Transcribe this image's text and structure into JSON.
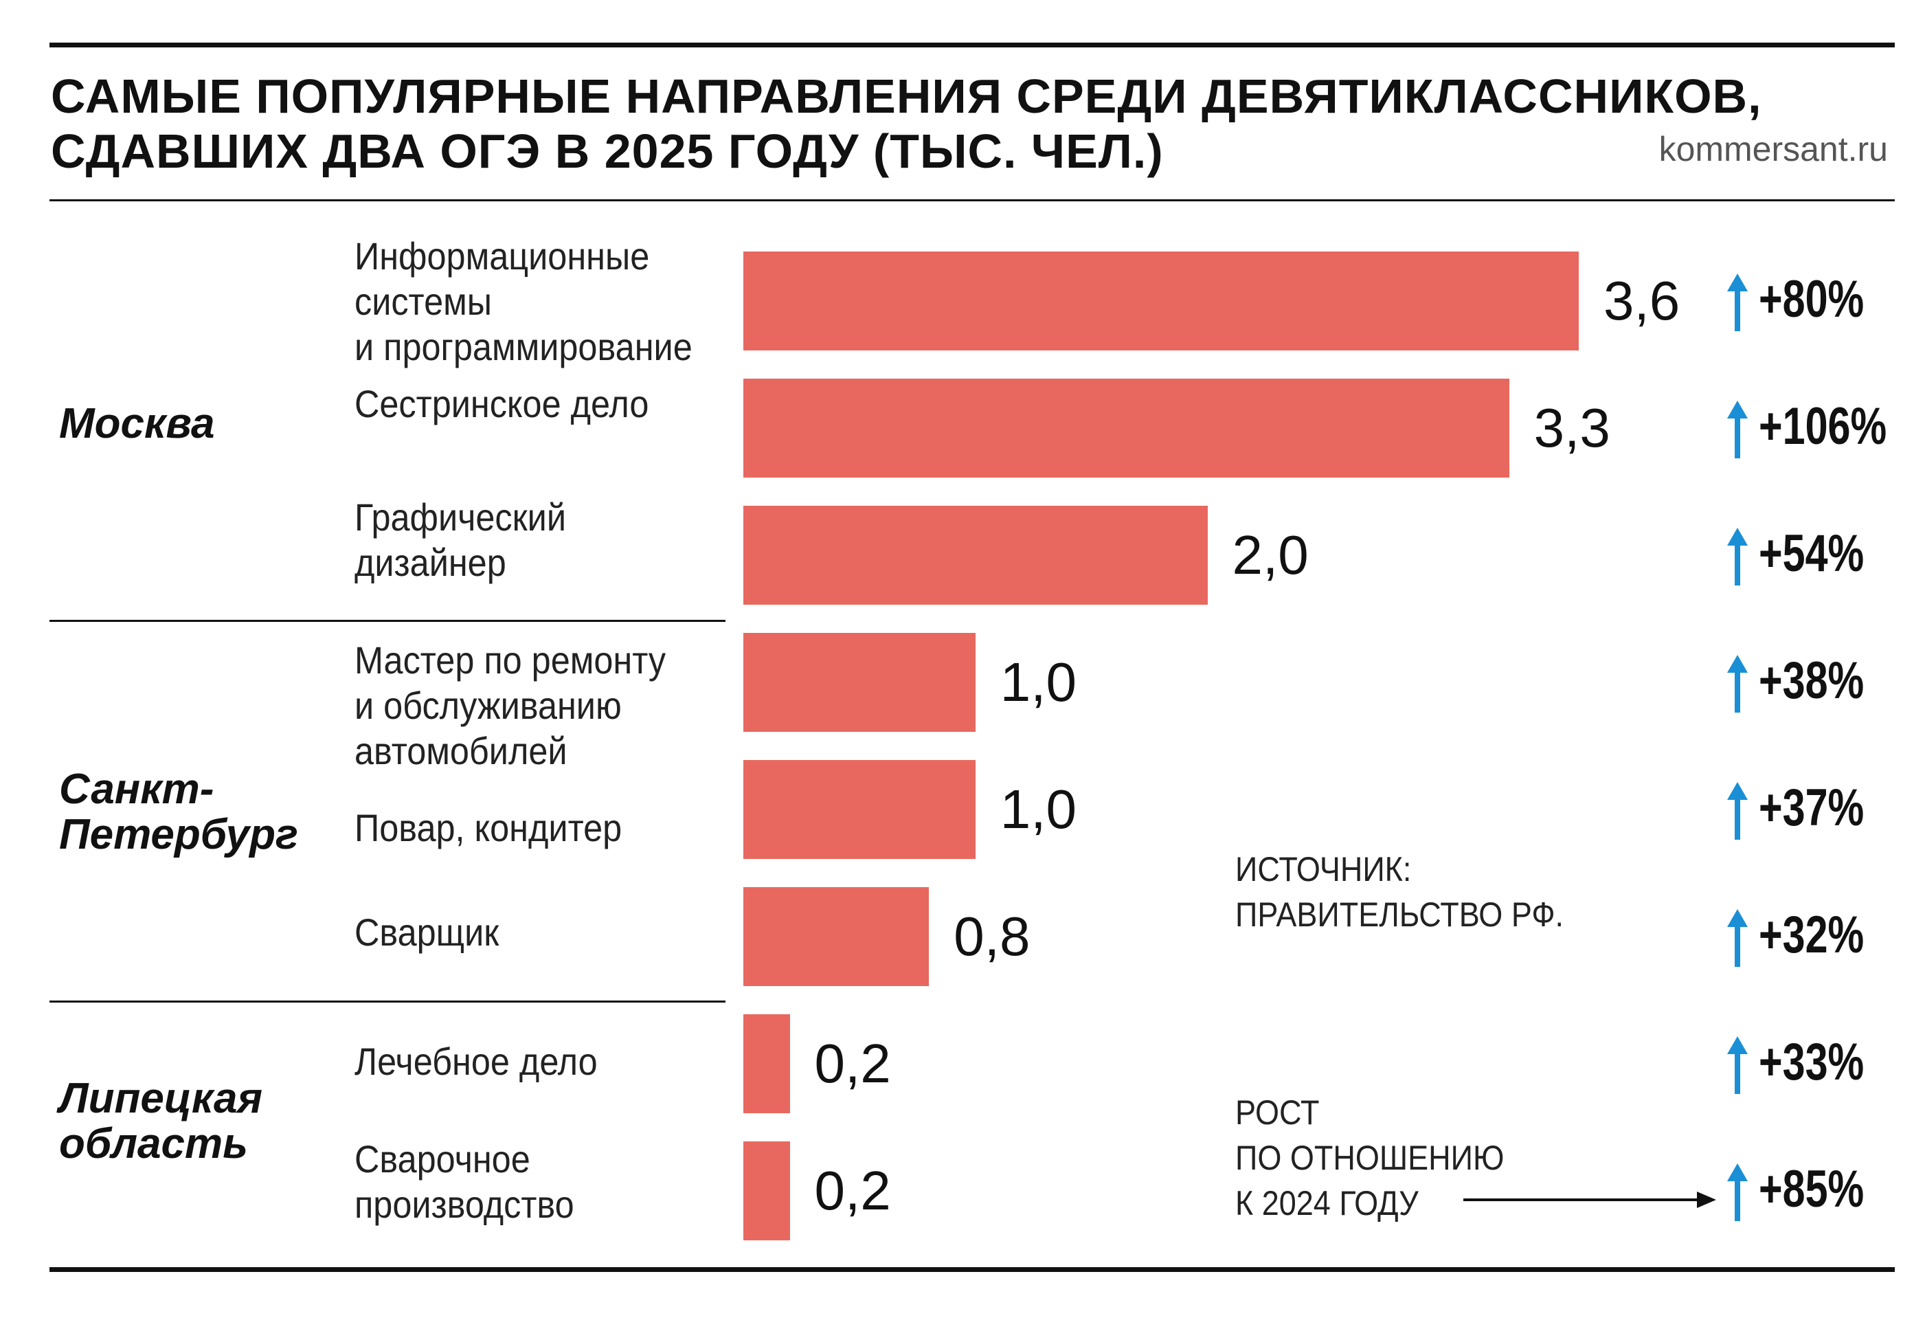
{
  "title": {
    "line1": "САМЫЕ ПОПУЛЯРНЫЕ НАПРАВЛЕНИЯ СРЕДИ ДЕВЯТИКЛАССНИКОВ,",
    "line2": "СДАВШИХ ДВА ОГЭ В 2025 ГОДУ (ТЫС. ЧЕЛ.)"
  },
  "site": "kommersant.ru",
  "colors": {
    "bar": "#e8685f",
    "arrow": "#1a8fd6",
    "rule": "#111111"
  },
  "regions": [
    "Москва",
    "Санкт-\nПетербург",
    "Липецкая\nобласть"
  ],
  "source": {
    "line1": "ИСТОЧНИК:",
    "line2": "ПРАВИТЕЛЬСТВО РФ."
  },
  "growth_note": {
    "line1": "РОСТ",
    "line2": "ПО ОТНОШЕНИЮ",
    "line3": "К 2024 ГОДУ"
  },
  "chart_data": {
    "type": "bar",
    "orientation": "horizontal",
    "title": "САМЫЕ ПОПУЛЯРНЫЕ НАПРАВЛЕНИЯ СРЕДИ ДЕВЯТИКЛАССНИКОВ, СДАВШИХ ДВА ОГЭ В 2025 ГОДУ (ТЫС. ЧЕЛ.)",
    "xlim": [
      0,
      3.6
    ],
    "categories": [
      "Информационные\nсистемы\nи программирование",
      "Сестринское дело",
      "Графический\nдизайнер",
      "Мастер по ремонту\nи обслуживанию\nавтомобилей",
      "Повар, кондитер",
      "Сварщик",
      "Лечебное дело",
      "Сварочное\nпроизводство"
    ],
    "groups": [
      "Москва",
      "Москва",
      "Москва",
      "Санкт-Петербург",
      "Санкт-Петербург",
      "Санкт-Петербург",
      "Липецкая область",
      "Липецкая область"
    ],
    "values": [
      3.6,
      3.3,
      2.0,
      1.0,
      1.0,
      0.8,
      0.2,
      0.2
    ],
    "value_labels": [
      "3,6",
      "3,3",
      "2,0",
      "1,0",
      "1,0",
      "0,8",
      "0,2",
      "0,2"
    ],
    "changes": [
      "+80%",
      "+106%",
      "+54%",
      "+38%",
      "+37%",
      "+32%",
      "+33%",
      "+85%"
    ]
  }
}
